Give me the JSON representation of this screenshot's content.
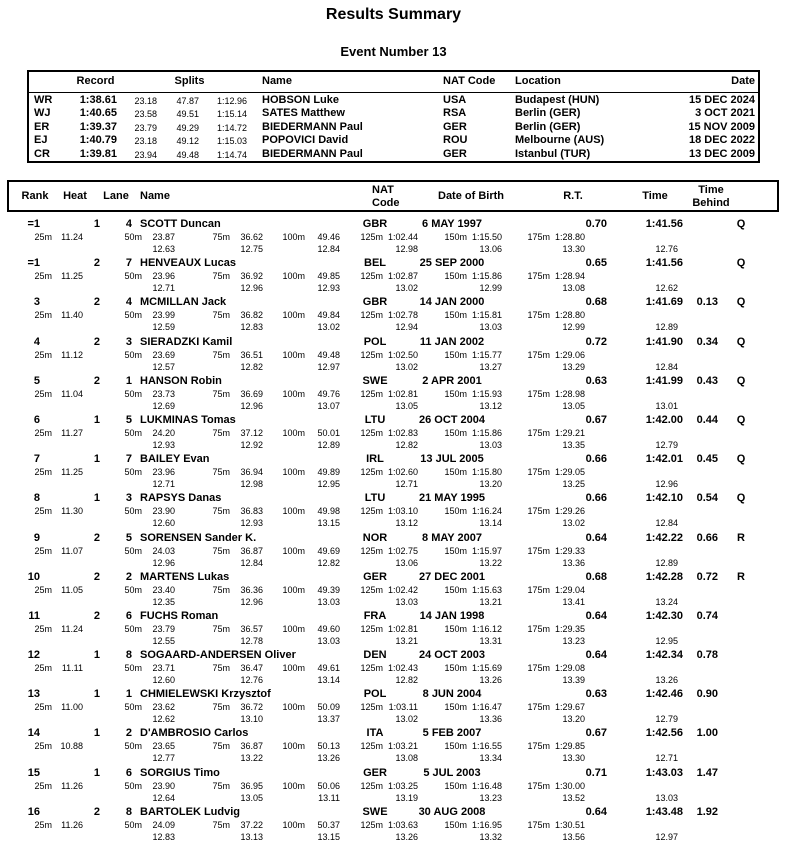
{
  "title": "Results Summary",
  "subtitle": "Event Number 13",
  "records": {
    "headers": {
      "record": "Record",
      "splits": "Splits",
      "name": "Name",
      "nat": "NAT Code",
      "location": "Location",
      "date": "Date"
    },
    "rows": [
      {
        "code": "WR",
        "record": "1:38.61",
        "s1": "23.18",
        "s2": "47.87",
        "s3": "1:12.96",
        "name": "HOBSON Luke",
        "nat": "USA",
        "location": "Budapest (HUN)",
        "date": "15 DEC 2024"
      },
      {
        "code": "WJ",
        "record": "1:40.65",
        "s1": "23.58",
        "s2": "49.51",
        "s3": "1:15.14",
        "name": "SATES Matthew",
        "nat": "RSA",
        "location": "Berlin (GER)",
        "date": "3 OCT 2021"
      },
      {
        "code": "ER",
        "record": "1:39.37",
        "s1": "23.79",
        "s2": "49.29",
        "s3": "1:14.72",
        "name": "BIEDERMANN Paul",
        "nat": "GER",
        "location": "Berlin (GER)",
        "date": "15 NOV 2009"
      },
      {
        "code": "EJ",
        "record": "1:40.79",
        "s1": "23.18",
        "s2": "49.12",
        "s3": "1:15.03",
        "name": "POPOVICI David",
        "nat": "ROU",
        "location": "Melbourne (AUS)",
        "date": "18 DEC 2022"
      },
      {
        "code": "CR",
        "record": "1:39.81",
        "s1": "23.94",
        "s2": "49.48",
        "s3": "1:14.74",
        "name": "BIEDERMANN Paul",
        "nat": "GER",
        "location": "Istanbul (TUR)",
        "date": "13 DEC 2009"
      }
    ]
  },
  "results": {
    "headers": {
      "rank": "Rank",
      "heat": "Heat",
      "lane": "Lane",
      "name": "Name",
      "nat_line1": "NAT",
      "nat_line2": "Code",
      "dob": "Date of Birth",
      "rt": "R.T.",
      "time": "Time",
      "behind_line1": "Time",
      "behind_line2": "Behind"
    },
    "rows": [
      {
        "rank": "=1",
        "heat": "1",
        "lane": "4",
        "name": "SCOTT Duncan",
        "nat": "GBR",
        "dob": "6 MAY 1997",
        "rt": "0.70",
        "time": "1:41.56",
        "behind": "",
        "qual": "Q",
        "final_sub": "12.76",
        "splits": [
          {
            "d": "25m",
            "t": "11.24",
            "s": ""
          },
          {
            "d": "50m",
            "t": "23.87",
            "s": "12.63"
          },
          {
            "d": "75m",
            "t": "36.62",
            "s": "12.75"
          },
          {
            "d": "100m",
            "t": "49.46",
            "s": "12.84"
          },
          {
            "d": "125m",
            "t": "1:02.44",
            "s": "12.98"
          },
          {
            "d": "150m",
            "t": "1:15.50",
            "s": "13.06"
          },
          {
            "d": "175m",
            "t": "1:28.80",
            "s": "13.30"
          }
        ]
      },
      {
        "rank": "=1",
        "heat": "2",
        "lane": "7",
        "name": "HENVEAUX Lucas",
        "nat": "BEL",
        "dob": "25 SEP 2000",
        "rt": "0.65",
        "time": "1:41.56",
        "behind": "",
        "qual": "Q",
        "final_sub": "12.62",
        "splits": [
          {
            "d": "25m",
            "t": "11.25",
            "s": ""
          },
          {
            "d": "50m",
            "t": "23.96",
            "s": "12.71"
          },
          {
            "d": "75m",
            "t": "36.92",
            "s": "12.96"
          },
          {
            "d": "100m",
            "t": "49.85",
            "s": "12.93"
          },
          {
            "d": "125m",
            "t": "1:02.87",
            "s": "13.02"
          },
          {
            "d": "150m",
            "t": "1:15.86",
            "s": "12.99"
          },
          {
            "d": "175m",
            "t": "1:28.94",
            "s": "13.08"
          }
        ]
      },
      {
        "rank": "3",
        "heat": "2",
        "lane": "4",
        "name": "MCMILLAN Jack",
        "nat": "GBR",
        "dob": "14 JAN 2000",
        "rt": "0.68",
        "time": "1:41.69",
        "behind": "0.13",
        "qual": "Q",
        "final_sub": "12.89",
        "splits": [
          {
            "d": "25m",
            "t": "11.40",
            "s": ""
          },
          {
            "d": "50m",
            "t": "23.99",
            "s": "12.59"
          },
          {
            "d": "75m",
            "t": "36.82",
            "s": "12.83"
          },
          {
            "d": "100m",
            "t": "49.84",
            "s": "13.02"
          },
          {
            "d": "125m",
            "t": "1:02.78",
            "s": "12.94"
          },
          {
            "d": "150m",
            "t": "1:15.81",
            "s": "13.03"
          },
          {
            "d": "175m",
            "t": "1:28.80",
            "s": "12.99"
          }
        ]
      },
      {
        "rank": "4",
        "heat": "2",
        "lane": "3",
        "name": "SIERADZKI Kamil",
        "nat": "POL",
        "dob": "11 JAN 2002",
        "rt": "0.72",
        "time": "1:41.90",
        "behind": "0.34",
        "qual": "Q",
        "final_sub": "12.84",
        "splits": [
          {
            "d": "25m",
            "t": "11.12",
            "s": ""
          },
          {
            "d": "50m",
            "t": "23.69",
            "s": "12.57"
          },
          {
            "d": "75m",
            "t": "36.51",
            "s": "12.82"
          },
          {
            "d": "100m",
            "t": "49.48",
            "s": "12.97"
          },
          {
            "d": "125m",
            "t": "1:02.50",
            "s": "13.02"
          },
          {
            "d": "150m",
            "t": "1:15.77",
            "s": "13.27"
          },
          {
            "d": "175m",
            "t": "1:29.06",
            "s": "13.29"
          }
        ]
      },
      {
        "rank": "5",
        "heat": "2",
        "lane": "1",
        "name": "HANSON Robin",
        "nat": "SWE",
        "dob": "2 APR 2001",
        "rt": "0.63",
        "time": "1:41.99",
        "behind": "0.43",
        "qual": "Q",
        "final_sub": "13.01",
        "splits": [
          {
            "d": "25m",
            "t": "11.04",
            "s": ""
          },
          {
            "d": "50m",
            "t": "23.73",
            "s": "12.69"
          },
          {
            "d": "75m",
            "t": "36.69",
            "s": "12.96"
          },
          {
            "d": "100m",
            "t": "49.76",
            "s": "13.07"
          },
          {
            "d": "125m",
            "t": "1:02.81",
            "s": "13.05"
          },
          {
            "d": "150m",
            "t": "1:15.93",
            "s": "13.12"
          },
          {
            "d": "175m",
            "t": "1:28.98",
            "s": "13.05"
          }
        ]
      },
      {
        "rank": "6",
        "heat": "1",
        "lane": "5",
        "name": "LUKMINAS Tomas",
        "nat": "LTU",
        "dob": "26 OCT 2004",
        "rt": "0.67",
        "time": "1:42.00",
        "behind": "0.44",
        "qual": "Q",
        "final_sub": "12.79",
        "splits": [
          {
            "d": "25m",
            "t": "11.27",
            "s": ""
          },
          {
            "d": "50m",
            "t": "24.20",
            "s": "12.93"
          },
          {
            "d": "75m",
            "t": "37.12",
            "s": "12.92"
          },
          {
            "d": "100m",
            "t": "50.01",
            "s": "12.89"
          },
          {
            "d": "125m",
            "t": "1:02.83",
            "s": "12.82"
          },
          {
            "d": "150m",
            "t": "1:15.86",
            "s": "13.03"
          },
          {
            "d": "175m",
            "t": "1:29.21",
            "s": "13.35"
          }
        ]
      },
      {
        "rank": "7",
        "heat": "1",
        "lane": "7",
        "name": "BAILEY Evan",
        "nat": "IRL",
        "dob": "13 JUL 2005",
        "rt": "0.66",
        "time": "1:42.01",
        "behind": "0.45",
        "qual": "Q",
        "final_sub": "12.96",
        "splits": [
          {
            "d": "25m",
            "t": "11.25",
            "s": ""
          },
          {
            "d": "50m",
            "t": "23.96",
            "s": "12.71"
          },
          {
            "d": "75m",
            "t": "36.94",
            "s": "12.98"
          },
          {
            "d": "100m",
            "t": "49.89",
            "s": "12.95"
          },
          {
            "d": "125m",
            "t": "1:02.60",
            "s": "12.71"
          },
          {
            "d": "150m",
            "t": "1:15.80",
            "s": "13.20"
          },
          {
            "d": "175m",
            "t": "1:29.05",
            "s": "13.25"
          }
        ]
      },
      {
        "rank": "8",
        "heat": "1",
        "lane": "3",
        "name": "RAPSYS Danas",
        "nat": "LTU",
        "dob": "21 MAY 1995",
        "rt": "0.66",
        "time": "1:42.10",
        "behind": "0.54",
        "qual": "Q",
        "final_sub": "12.84",
        "splits": [
          {
            "d": "25m",
            "t": "11.30",
            "s": ""
          },
          {
            "d": "50m",
            "t": "23.90",
            "s": "12.60"
          },
          {
            "d": "75m",
            "t": "36.83",
            "s": "12.93"
          },
          {
            "d": "100m",
            "t": "49.98",
            "s": "13.15"
          },
          {
            "d": "125m",
            "t": "1:03.10",
            "s": "13.12"
          },
          {
            "d": "150m",
            "t": "1:16.24",
            "s": "13.14"
          },
          {
            "d": "175m",
            "t": "1:29.26",
            "s": "13.02"
          }
        ]
      },
      {
        "rank": "9",
        "heat": "2",
        "lane": "5",
        "name": "SORENSEN Sander K.",
        "nat": "NOR",
        "dob": "8 MAY 2007",
        "rt": "0.64",
        "time": "1:42.22",
        "behind": "0.66",
        "qual": "R",
        "final_sub": "12.89",
        "splits": [
          {
            "d": "25m",
            "t": "11.07",
            "s": ""
          },
          {
            "d": "50m",
            "t": "24.03",
            "s": "12.96"
          },
          {
            "d": "75m",
            "t": "36.87",
            "s": "12.84"
          },
          {
            "d": "100m",
            "t": "49.69",
            "s": "12.82"
          },
          {
            "d": "125m",
            "t": "1:02.75",
            "s": "13.06"
          },
          {
            "d": "150m",
            "t": "1:15.97",
            "s": "13.22"
          },
          {
            "d": "175m",
            "t": "1:29.33",
            "s": "13.36"
          }
        ]
      },
      {
        "rank": "10",
        "heat": "2",
        "lane": "2",
        "name": "MARTENS Lukas",
        "nat": "GER",
        "dob": "27 DEC 2001",
        "rt": "0.68",
        "time": "1:42.28",
        "behind": "0.72",
        "qual": "R",
        "final_sub": "13.24",
        "splits": [
          {
            "d": "25m",
            "t": "11.05",
            "s": ""
          },
          {
            "d": "50m",
            "t": "23.40",
            "s": "12.35"
          },
          {
            "d": "75m",
            "t": "36.36",
            "s": "12.96"
          },
          {
            "d": "100m",
            "t": "49.39",
            "s": "13.03"
          },
          {
            "d": "125m",
            "t": "1:02.42",
            "s": "13.03"
          },
          {
            "d": "150m",
            "t": "1:15.63",
            "s": "13.21"
          },
          {
            "d": "175m",
            "t": "1:29.04",
            "s": "13.41"
          }
        ]
      },
      {
        "rank": "11",
        "heat": "2",
        "lane": "6",
        "name": "FUCHS Roman",
        "nat": "FRA",
        "dob": "14 JAN 1998",
        "rt": "0.64",
        "time": "1:42.30",
        "behind": "0.74",
        "qual": "",
        "final_sub": "12.95",
        "splits": [
          {
            "d": "25m",
            "t": "11.24",
            "s": ""
          },
          {
            "d": "50m",
            "t": "23.79",
            "s": "12.55"
          },
          {
            "d": "75m",
            "t": "36.57",
            "s": "12.78"
          },
          {
            "d": "100m",
            "t": "49.60",
            "s": "13.03"
          },
          {
            "d": "125m",
            "t": "1:02.81",
            "s": "13.21"
          },
          {
            "d": "150m",
            "t": "1:16.12",
            "s": "13.31"
          },
          {
            "d": "175m",
            "t": "1:29.35",
            "s": "13.23"
          }
        ]
      },
      {
        "rank": "12",
        "heat": "1",
        "lane": "8",
        "name": "SOGAARD-ANDERSEN Oliver",
        "nat": "DEN",
        "dob": "24 OCT 2003",
        "rt": "0.64",
        "time": "1:42.34",
        "behind": "0.78",
        "qual": "",
        "final_sub": "13.26",
        "splits": [
          {
            "d": "25m",
            "t": "11.11",
            "s": ""
          },
          {
            "d": "50m",
            "t": "23.71",
            "s": "12.60"
          },
          {
            "d": "75m",
            "t": "36.47",
            "s": "12.76"
          },
          {
            "d": "100m",
            "t": "49.61",
            "s": "13.14"
          },
          {
            "d": "125m",
            "t": "1:02.43",
            "s": "12.82"
          },
          {
            "d": "150m",
            "t": "1:15.69",
            "s": "13.26"
          },
          {
            "d": "175m",
            "t": "1:29.08",
            "s": "13.39"
          }
        ]
      },
      {
        "rank": "13",
        "heat": "1",
        "lane": "1",
        "name": "CHMIELEWSKI Krzysztof",
        "nat": "POL",
        "dob": "8 JUN 2004",
        "rt": "0.63",
        "time": "1:42.46",
        "behind": "0.90",
        "qual": "",
        "final_sub": "12.79",
        "splits": [
          {
            "d": "25m",
            "t": "11.00",
            "s": ""
          },
          {
            "d": "50m",
            "t": "23.62",
            "s": "12.62"
          },
          {
            "d": "75m",
            "t": "36.72",
            "s": "13.10"
          },
          {
            "d": "100m",
            "t": "50.09",
            "s": "13.37"
          },
          {
            "d": "125m",
            "t": "1:03.11",
            "s": "13.02"
          },
          {
            "d": "150m",
            "t": "1:16.47",
            "s": "13.36"
          },
          {
            "d": "175m",
            "t": "1:29.67",
            "s": "13.20"
          }
        ]
      },
      {
        "rank": "14",
        "heat": "1",
        "lane": "2",
        "name": "D'AMBROSIO Carlos",
        "nat": "ITA",
        "dob": "5 FEB 2007",
        "rt": "0.67",
        "time": "1:42.56",
        "behind": "1.00",
        "qual": "",
        "final_sub": "12.71",
        "splits": [
          {
            "d": "25m",
            "t": "10.88",
            "s": ""
          },
          {
            "d": "50m",
            "t": "23.65",
            "s": "12.77"
          },
          {
            "d": "75m",
            "t": "36.87",
            "s": "13.22"
          },
          {
            "d": "100m",
            "t": "50.13",
            "s": "13.26"
          },
          {
            "d": "125m",
            "t": "1:03.21",
            "s": "13.08"
          },
          {
            "d": "150m",
            "t": "1:16.55",
            "s": "13.34"
          },
          {
            "d": "175m",
            "t": "1:29.85",
            "s": "13.30"
          }
        ]
      },
      {
        "rank": "15",
        "heat": "1",
        "lane": "6",
        "name": "SORGIUS Timo",
        "nat": "GER",
        "dob": "5 JUL 2003",
        "rt": "0.71",
        "time": "1:43.03",
        "behind": "1.47",
        "qual": "",
        "final_sub": "13.03",
        "splits": [
          {
            "d": "25m",
            "t": "11.26",
            "s": ""
          },
          {
            "d": "50m",
            "t": "23.90",
            "s": "12.64"
          },
          {
            "d": "75m",
            "t": "36.95",
            "s": "13.05"
          },
          {
            "d": "100m",
            "t": "50.06",
            "s": "13.11"
          },
          {
            "d": "125m",
            "t": "1:03.25",
            "s": "13.19"
          },
          {
            "d": "150m",
            "t": "1:16.48",
            "s": "13.23"
          },
          {
            "d": "175m",
            "t": "1:30.00",
            "s": "13.52"
          }
        ]
      },
      {
        "rank": "16",
        "heat": "2",
        "lane": "8",
        "name": "BARTOLEK Ludvig",
        "nat": "SWE",
        "dob": "30 AUG 2008",
        "rt": "0.64",
        "time": "1:43.48",
        "behind": "1.92",
        "qual": "",
        "final_sub": "12.97",
        "splits": [
          {
            "d": "25m",
            "t": "11.26",
            "s": ""
          },
          {
            "d": "50m",
            "t": "24.09",
            "s": "12.83"
          },
          {
            "d": "75m",
            "t": "37.22",
            "s": "13.13"
          },
          {
            "d": "100m",
            "t": "50.37",
            "s": "13.15"
          },
          {
            "d": "125m",
            "t": "1:03.63",
            "s": "13.26"
          },
          {
            "d": "150m",
            "t": "1:16.95",
            "s": "13.32"
          },
          {
            "d": "175m",
            "t": "1:30.51",
            "s": "13.56"
          }
        ]
      }
    ]
  }
}
